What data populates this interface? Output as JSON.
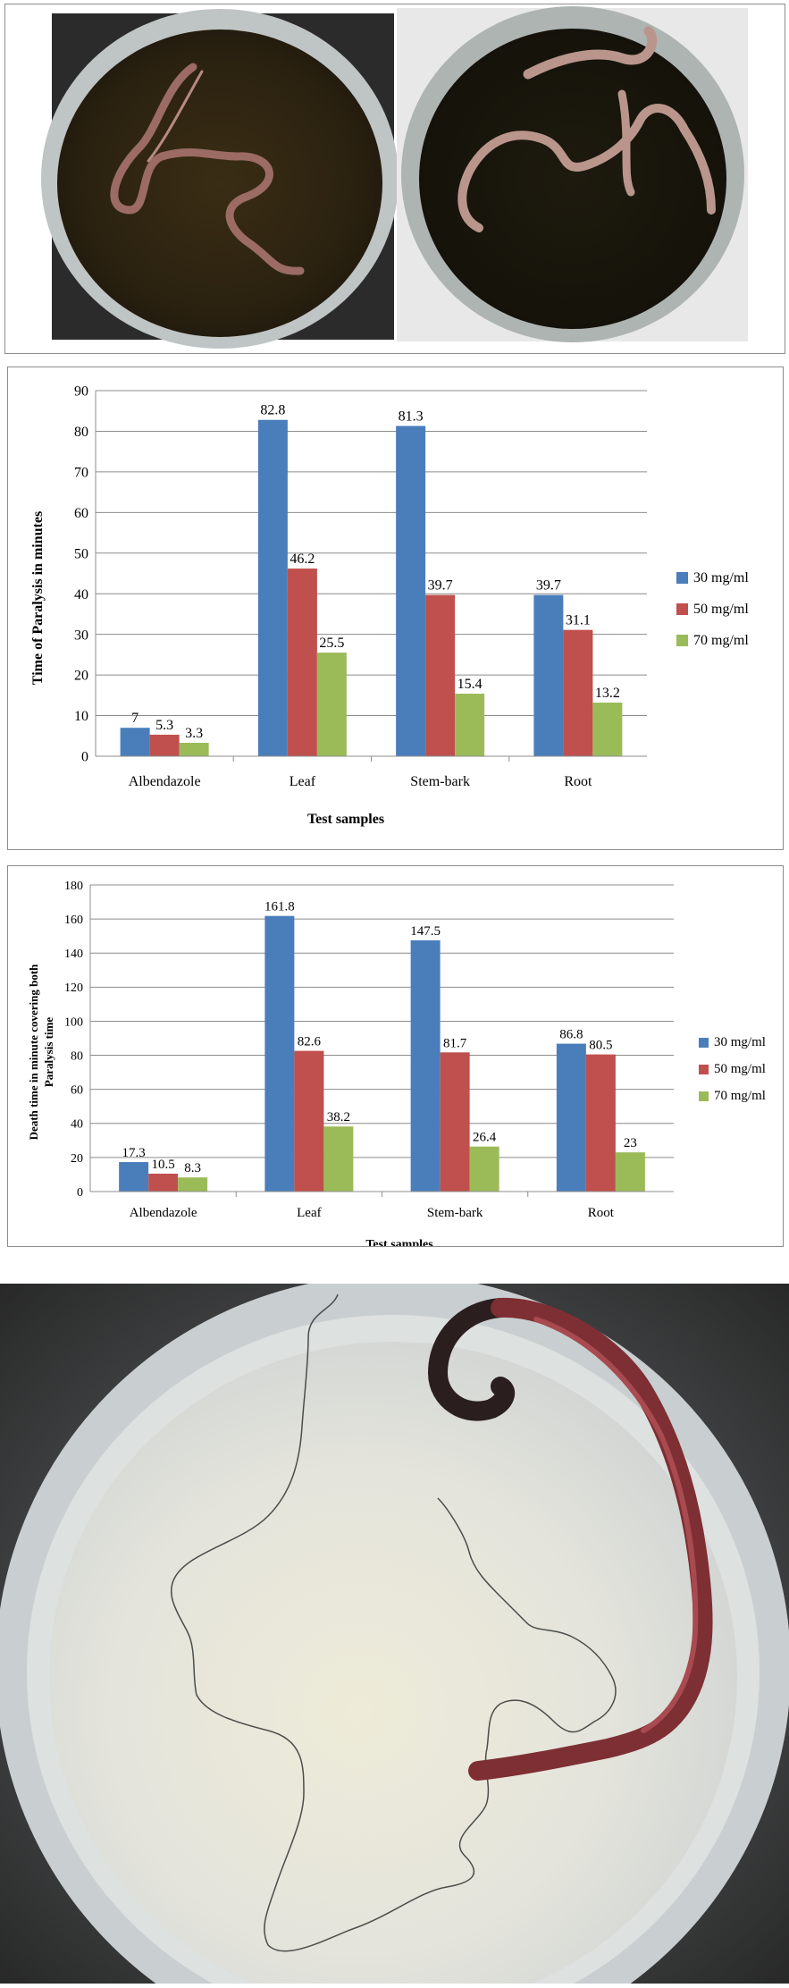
{
  "colors": {
    "series": [
      "#4a7ebb",
      "#c0504d",
      "#9bbb59"
    ],
    "grid": "#8c8c8c",
    "axis": "#8c8c8c"
  },
  "chart_data": [
    {
      "type": "bar",
      "title": "",
      "xlabel": "Test samples",
      "ylabel": "Time of Paralysis in minutes",
      "categories": [
        "Albendazole",
        "Leaf",
        "Stem-bark",
        "Root"
      ],
      "ylim": [
        0,
        90
      ],
      "yticks": [
        0,
        10,
        20,
        30,
        40,
        50,
        60,
        70,
        80,
        90
      ],
      "grid": true,
      "legend_position": "right",
      "series": [
        {
          "name": "30 mg/ml",
          "values": [
            7,
            82.8,
            81.3,
            39.7
          ]
        },
        {
          "name": "50 mg/ml",
          "values": [
            5.3,
            46.2,
            39.7,
            31.1
          ]
        },
        {
          "name": "70 mg/ml",
          "values": [
            3.3,
            25.5,
            15.4,
            13.2
          ]
        }
      ]
    },
    {
      "type": "bar",
      "title": "",
      "xlabel": "Test samples",
      "ylabel": "Death time in minute covering both Paralysis time",
      "ylabel_lines": [
        "Death time in minute covering both",
        "Paralysis time"
      ],
      "categories": [
        "Albendazole",
        "Leaf",
        "Stem-bark",
        "Root"
      ],
      "ylim": [
        0,
        180
      ],
      "yticks": [
        0,
        20,
        40,
        60,
        80,
        100,
        120,
        140,
        160,
        180
      ],
      "grid": true,
      "legend_position": "right",
      "series": [
        {
          "name": "30 mg/ml",
          "values": [
            17.3,
            161.8,
            147.5,
            86.8
          ]
        },
        {
          "name": "50 mg/ml",
          "values": [
            10.5,
            82.6,
            81.7,
            80.5
          ]
        },
        {
          "name": "70 mg/ml",
          "values": [
            8.3,
            38.2,
            26.4,
            23
          ]
        }
      ]
    }
  ]
}
